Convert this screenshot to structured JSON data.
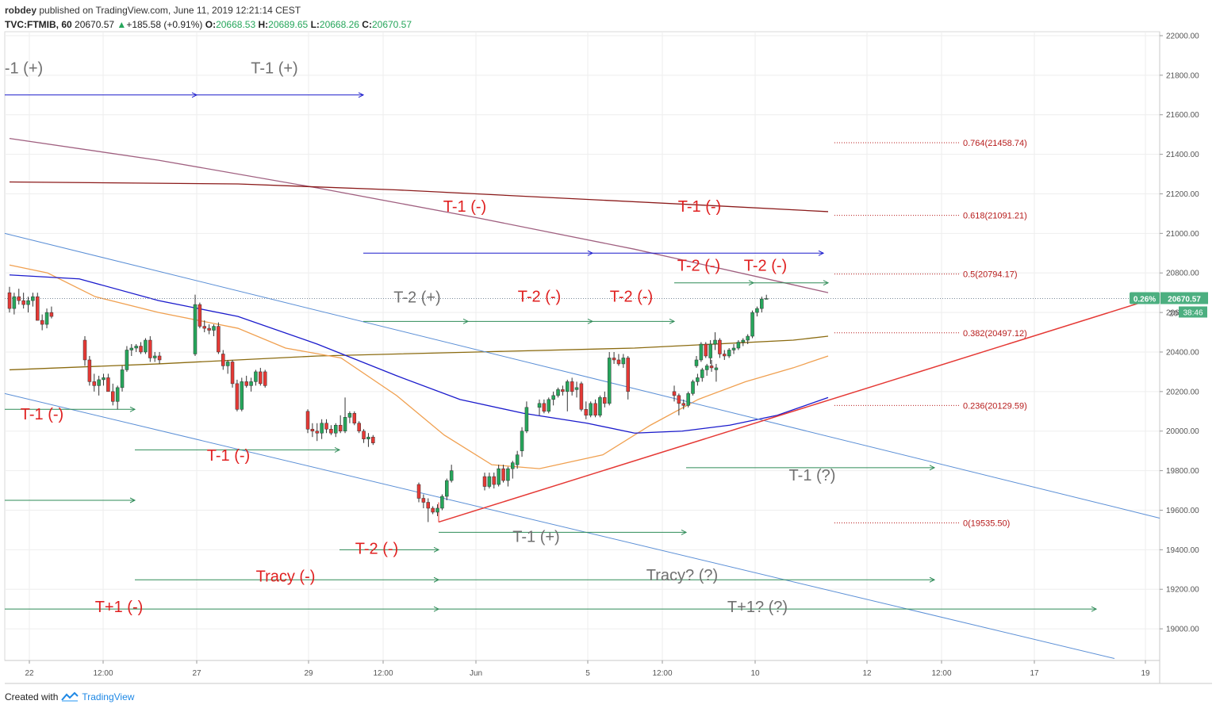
{
  "header": {
    "publisher": "robdey",
    "published_text": "published on TradingView.com, June 11, 2019 12:21:14 CEST",
    "symbol": "TVC:FTMIB, 60",
    "last": "20670.57",
    "change": "+185.58 (+0.91%)",
    "o_label": "O:",
    "o": "20668.53",
    "h_label": "H:",
    "h": "20689.65",
    "l_label": "L:",
    "l": "20668.26",
    "c_label": "C:",
    "c": "20670.57"
  },
  "footer": {
    "created_with": "Created with",
    "brand": "TradingView"
  },
  "price_badge": {
    "pct": "0.26%",
    "price": "20670.57",
    "countdown": "38:46",
    "partial": "20"
  },
  "colors": {
    "up": "#26a65b",
    "down": "#e53935",
    "ma_blue": "#1a1acc",
    "ma_orange": "#f0a050",
    "ma_olive": "#8b6b10",
    "ma_maroon": "#8b1a1a",
    "ma_mauve": "#a06080",
    "channel": "#5b8fd6",
    "trend_red": "#e53935",
    "fib": "#b71c1c",
    "arrow_blue": "#1a1acc",
    "arrow_green": "#2e8b57",
    "ann_red": "#e02020",
    "ann_gray": "#707070"
  },
  "chart_data": {
    "type": "candlestick",
    "title": "",
    "y_ticks": [
      "22000.00",
      "21800.00",
      "21600.00",
      "21400.00",
      "21200.00",
      "21000.00",
      "20800.00",
      "20600.00",
      "20400.00",
      "20200.00",
      "20000.00",
      "19800.00",
      "19600.00",
      "19400.00",
      "19200.00",
      "19000.00"
    ],
    "y_range": [
      18840,
      22020
    ],
    "x_ticks": [
      "22",
      "12:00",
      "27",
      "29",
      "12:00",
      "Jun",
      "5",
      "12:00",
      "10",
      "12",
      "12:00",
      "17",
      "19"
    ],
    "fib_levels": [
      {
        "label": "0.764(21458.74)",
        "value": 21458.74
      },
      {
        "label": "0.618(21091.21)",
        "value": 21091.21
      },
      {
        "label": "0.5(20794.17)",
        "value": 20794.17
      },
      {
        "label": "0.382(20497.12)",
        "value": 20497.12
      },
      {
        "label": "0.236(20129.59)",
        "value": 20129.59
      },
      {
        "label": "0(19535.50)",
        "value": 19535.5
      }
    ],
    "candles": [
      {
        "o": 20700,
        "h": 20730,
        "l": 20600,
        "c": 20620
      },
      {
        "o": 20620,
        "h": 20700,
        "l": 20590,
        "c": 20680
      },
      {
        "o": 20680,
        "h": 20720,
        "l": 20640,
        "c": 20660
      },
      {
        "o": 20660,
        "h": 20700,
        "l": 20620,
        "c": 20640
      },
      {
        "o": 20640,
        "h": 20680,
        "l": 20600,
        "c": 20660
      },
      {
        "o": 20660,
        "h": 20700,
        "l": 20630,
        "c": 20680
      },
      {
        "o": 20680,
        "h": 20700,
        "l": 20560,
        "c": 20560
      },
      {
        "o": 20560,
        "h": 20590,
        "l": 20510,
        "c": 20540
      },
      {
        "o": 20540,
        "h": 20620,
        "l": 20520,
        "c": 20600
      },
      {
        "o": 20600,
        "h": 20630,
        "l": 20570,
        "c": 20580
      },
      {
        "o": 20460,
        "h": 20480,
        "l": 20330,
        "c": 20360
      },
      {
        "o": 20360,
        "h": 20380,
        "l": 20230,
        "c": 20250
      },
      {
        "o": 20250,
        "h": 20290,
        "l": 20200,
        "c": 20230
      },
      {
        "o": 20230,
        "h": 20280,
        "l": 20180,
        "c": 20260
      },
      {
        "o": 20260,
        "h": 20290,
        "l": 20230,
        "c": 20270
      },
      {
        "o": 20270,
        "h": 20290,
        "l": 20200,
        "c": 20200
      },
      {
        "o": 20200,
        "h": 20240,
        "l": 20130,
        "c": 20150
      },
      {
        "o": 20150,
        "h": 20230,
        "l": 20110,
        "c": 20220
      },
      {
        "o": 20220,
        "h": 20330,
        "l": 20200,
        "c": 20310
      },
      {
        "o": 20310,
        "h": 20430,
        "l": 20300,
        "c": 20410
      },
      {
        "o": 20410,
        "h": 20440,
        "l": 20380,
        "c": 20420
      },
      {
        "o": 20420,
        "h": 20440,
        "l": 20400,
        "c": 20430
      },
      {
        "o": 20430,
        "h": 20450,
        "l": 20390,
        "c": 20400
      },
      {
        "o": 20400,
        "h": 20470,
        "l": 20390,
        "c": 20460
      },
      {
        "o": 20460,
        "h": 20480,
        "l": 20350,
        "c": 20370
      },
      {
        "o": 20370,
        "h": 20400,
        "l": 20350,
        "c": 20380
      },
      {
        "o": 20380,
        "h": 20400,
        "l": 20340,
        "c": 20360
      },
      {
        "o": 20390,
        "h": 20690,
        "l": 20380,
        "c": 20640
      },
      {
        "o": 20640,
        "h": 20650,
        "l": 20520,
        "c": 20530
      },
      {
        "o": 20530,
        "h": 20560,
        "l": 20500,
        "c": 20520
      },
      {
        "o": 20520,
        "h": 20540,
        "l": 20490,
        "c": 20510
      },
      {
        "o": 20510,
        "h": 20540,
        "l": 20480,
        "c": 20530
      },
      {
        "o": 20530,
        "h": 20550,
        "l": 20390,
        "c": 20400
      },
      {
        "o": 20390,
        "h": 20410,
        "l": 20310,
        "c": 20330
      },
      {
        "o": 20330,
        "h": 20360,
        "l": 20290,
        "c": 20350
      },
      {
        "o": 20350,
        "h": 20360,
        "l": 20220,
        "c": 20240
      },
      {
        "o": 20240,
        "h": 20260,
        "l": 20100,
        "c": 20110
      },
      {
        "o": 20110,
        "h": 20270,
        "l": 20100,
        "c": 20250
      },
      {
        "o": 20250,
        "h": 20280,
        "l": 20220,
        "c": 20230
      },
      {
        "o": 20230,
        "h": 20270,
        "l": 20200,
        "c": 20250
      },
      {
        "o": 20250,
        "h": 20310,
        "l": 20230,
        "c": 20300
      },
      {
        "o": 20300,
        "h": 20320,
        "l": 20230,
        "c": 20240
      },
      {
        "o": 20300,
        "h": 20310,
        "l": 20220,
        "c": 20230
      },
      {
        "o": 20100,
        "h": 20110,
        "l": 19990,
        "c": 20010
      },
      {
        "o": 20010,
        "h": 20040,
        "l": 19970,
        "c": 20000
      },
      {
        "o": 20000,
        "h": 20040,
        "l": 19950,
        "c": 19990
      },
      {
        "o": 19990,
        "h": 20060,
        "l": 19960,
        "c": 20040
      },
      {
        "o": 20040,
        "h": 20060,
        "l": 19990,
        "c": 20010
      },
      {
        "o": 20010,
        "h": 20030,
        "l": 19980,
        "c": 19990
      },
      {
        "o": 19990,
        "h": 20040,
        "l": 19970,
        "c": 20030
      },
      {
        "o": 20030,
        "h": 20080,
        "l": 19990,
        "c": 20000
      },
      {
        "o": 20000,
        "h": 20170,
        "l": 19990,
        "c": 20070
      },
      {
        "o": 20070,
        "h": 20100,
        "l": 20040,
        "c": 20090
      },
      {
        "o": 20090,
        "h": 20100,
        "l": 20030,
        "c": 20040
      },
      {
        "o": 20040,
        "h": 20050,
        "l": 19990,
        "c": 20000
      },
      {
        "o": 20000,
        "h": 20010,
        "l": 19940,
        "c": 19960
      },
      {
        "o": 19960,
        "h": 19990,
        "l": 19920,
        "c": 19970
      },
      {
        "o": 19970,
        "h": 19980,
        "l": 19930,
        "c": 19940
      },
      {
        "o": 19730,
        "h": 19740,
        "l": 19640,
        "c": 19660
      },
      {
        "o": 19660,
        "h": 19680,
        "l": 19610,
        "c": 19640
      },
      {
        "o": 19640,
        "h": 19660,
        "l": 19540,
        "c": 19610
      },
      {
        "o": 19610,
        "h": 19620,
        "l": 19580,
        "c": 19590
      },
      {
        "o": 19590,
        "h": 19630,
        "l": 19570,
        "c": 19610
      },
      {
        "o": 19610,
        "h": 19680,
        "l": 19600,
        "c": 19670
      },
      {
        "o": 19670,
        "h": 19760,
        "l": 19650,
        "c": 19750
      },
      {
        "o": 19750,
        "h": 19830,
        "l": 19740,
        "c": 19800
      },
      {
        "o": 19770,
        "h": 19790,
        "l": 19700,
        "c": 19720
      },
      {
        "o": 19720,
        "h": 19790,
        "l": 19710,
        "c": 19770
      },
      {
        "o": 19770,
        "h": 19790,
        "l": 19710,
        "c": 19730
      },
      {
        "o": 19730,
        "h": 19830,
        "l": 19720,
        "c": 19810
      },
      {
        "o": 19810,
        "h": 19830,
        "l": 19740,
        "c": 19750
      },
      {
        "o": 19750,
        "h": 19820,
        "l": 19720,
        "c": 19810
      },
      {
        "o": 19810,
        "h": 19850,
        "l": 19760,
        "c": 19840
      },
      {
        "o": 19830,
        "h": 19900,
        "l": 19810,
        "c": 19880
      },
      {
        "o": 19900,
        "h": 20020,
        "l": 19870,
        "c": 20000
      },
      {
        "o": 20000,
        "h": 20150,
        "l": 19990,
        "c": 20120
      },
      {
        "o": 20120,
        "h": 20160,
        "l": 20080,
        "c": 20140
      },
      {
        "o": 20140,
        "h": 20160,
        "l": 20090,
        "c": 20100
      },
      {
        "o": 20100,
        "h": 20170,
        "l": 20090,
        "c": 20160
      },
      {
        "o": 20160,
        "h": 20200,
        "l": 20130,
        "c": 20180
      },
      {
        "o": 20180,
        "h": 20220,
        "l": 20170,
        "c": 20210
      },
      {
        "o": 20210,
        "h": 20230,
        "l": 20180,
        "c": 20200
      },
      {
        "o": 20200,
        "h": 20260,
        "l": 20100,
        "c": 20250
      },
      {
        "o": 20250,
        "h": 20270,
        "l": 20180,
        "c": 20200
      },
      {
        "o": 20210,
        "h": 20250,
        "l": 20170,
        "c": 20220
      },
      {
        "o": 20240,
        "h": 20250,
        "l": 20100,
        "c": 20110
      },
      {
        "o": 20110,
        "h": 20150,
        "l": 20060,
        "c": 20080
      },
      {
        "o": 20080,
        "h": 20150,
        "l": 20070,
        "c": 20140
      },
      {
        "o": 20140,
        "h": 20160,
        "l": 20070,
        "c": 20080
      },
      {
        "o": 20080,
        "h": 20180,
        "l": 20070,
        "c": 20170
      },
      {
        "o": 20170,
        "h": 20200,
        "l": 20120,
        "c": 20140
      },
      {
        "o": 20140,
        "h": 20400,
        "l": 20130,
        "c": 20370
      },
      {
        "o": 20370,
        "h": 20400,
        "l": 20340,
        "c": 20360
      },
      {
        "o": 20360,
        "h": 20390,
        "l": 20330,
        "c": 20340
      },
      {
        "o": 20340,
        "h": 20390,
        "l": 20320,
        "c": 20370
      },
      {
        "o": 20370,
        "h": 20380,
        "l": 20160,
        "c": 20200
      },
      {
        "o": 20200,
        "h": 20230,
        "l": 20150,
        "c": 20180
      },
      {
        "o": 20180,
        "h": 20190,
        "l": 20080,
        "c": 20140
      },
      {
        "o": 20140,
        "h": 20160,
        "l": 20110,
        "c": 20130
      },
      {
        "o": 20130,
        "h": 20200,
        "l": 20120,
        "c": 20190
      },
      {
        "o": 20190,
        "h": 20260,
        "l": 20180,
        "c": 20250
      },
      {
        "o": 20250,
        "h": 20290,
        "l": 20230,
        "c": 20270
      },
      {
        "o": 20270,
        "h": 20320,
        "l": 20250,
        "c": 20310
      },
      {
        "o": 20310,
        "h": 20340,
        "l": 20280,
        "c": 20330
      },
      {
        "o": 20330,
        "h": 20360,
        "l": 20300,
        "c": 20320
      },
      {
        "o": 20310,
        "h": 20340,
        "l": 20250,
        "c": 20320
      },
      {
        "o": 20330,
        "h": 20380,
        "l": 20320,
        "c": 20360
      },
      {
        "o": 20360,
        "h": 20450,
        "l": 20350,
        "c": 20440
      },
      {
        "o": 20440,
        "h": 20450,
        "l": 20370,
        "c": 20380
      },
      {
        "o": 20370,
        "h": 20460,
        "l": 20340,
        "c": 20440
      },
      {
        "o": 20440,
        "h": 20500,
        "l": 20410,
        "c": 20460
      },
      {
        "o": 20460,
        "h": 20470,
        "l": 20370,
        "c": 20390
      },
      {
        "o": 20390,
        "h": 20410,
        "l": 20360,
        "c": 20380
      },
      {
        "o": 20380,
        "h": 20420,
        "l": 20370,
        "c": 20410
      },
      {
        "o": 20410,
        "h": 20440,
        "l": 20390,
        "c": 20420
      },
      {
        "o": 20420,
        "h": 20460,
        "l": 20410,
        "c": 20450
      },
      {
        "o": 20450,
        "h": 20470,
        "l": 20430,
        "c": 20460
      },
      {
        "o": 20460,
        "h": 20490,
        "l": 20440,
        "c": 20480
      },
      {
        "o": 20480,
        "h": 20610,
        "l": 20470,
        "c": 20600
      },
      {
        "o": 20600,
        "h": 20630,
        "l": 20580,
        "c": 20620
      },
      {
        "o": 20620,
        "h": 20680,
        "l": 20600,
        "c": 20668.53
      },
      {
        "o": 20668.53,
        "h": 20689.65,
        "l": 20668.26,
        "c": 20670.57
      }
    ]
  },
  "annotations": [
    {
      "text": "-1 (+)",
      "color": "gray"
    },
    {
      "text": "T-1 (+)",
      "color": "gray"
    },
    {
      "text": "T-1 (-)",
      "color": "red"
    },
    {
      "text": "T-1 (-)",
      "color": "red"
    },
    {
      "text": "T-2 (-)",
      "color": "red"
    },
    {
      "text": "T-2 (-)",
      "color": "red"
    },
    {
      "text": "T-2 (+)",
      "color": "gray"
    },
    {
      "text": "T-2 (-)",
      "color": "red"
    },
    {
      "text": "T-2 (-)",
      "color": "red"
    },
    {
      "text": "T-1 (-)",
      "color": "red"
    },
    {
      "text": "T-1 (-)",
      "color": "red"
    },
    {
      "text": "T-1 (?)",
      "color": "gray"
    },
    {
      "text": "T-1 (+)",
      "color": "gray"
    },
    {
      "text": "T-2 (-)",
      "color": "red"
    },
    {
      "text": "Tracy (-)",
      "color": "red"
    },
    {
      "text": "Tracy? (?)",
      "color": "gray"
    },
    {
      "text": "T+1 (-)",
      "color": "red"
    },
    {
      "text": "T+1? (?)",
      "color": "gray"
    }
  ]
}
